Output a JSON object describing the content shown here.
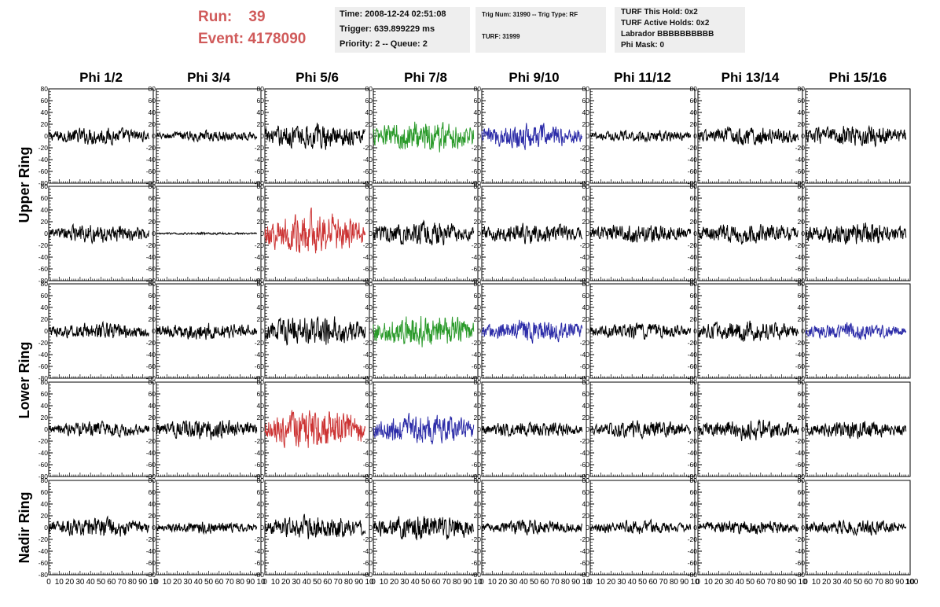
{
  "header": {
    "run_label": "Run:",
    "run_value": "39",
    "event_label": "Event:",
    "event_value": "4178090",
    "time_line": "Time: 2008-12-24 02:51:08",
    "trigger_line": "Trigger: 639.899229 ms",
    "priority_line": "Priority: 2 -- Queue: 2",
    "trig_num_line": "Trig Num: 31990 -- Trig Type: RF",
    "turf_line": "TURF: 31999",
    "turf_this_hold": "TURF This Hold: 0x2",
    "turf_active_holds": "TURF Active Holds: 0x2",
    "labrador": "Labrador BBBBBBBBBB",
    "phi_mask": "Phi Mask: 0"
  },
  "chart_data": {
    "type": "line",
    "columns": [
      "Phi 1/2",
      "Phi 3/4",
      "Phi 5/6",
      "Phi 7/8",
      "Phi 9/10",
      "Phi 11/12",
      "Phi 13/14",
      "Phi 15/16"
    ],
    "ring_labels": [
      {
        "text": "Upper Ring",
        "rows": [
          0,
          1
        ]
      },
      {
        "text": "Lower Ring",
        "rows": [
          2,
          3
        ]
      },
      {
        "text": "Nadir Ring",
        "rows": [
          4
        ]
      }
    ],
    "xlim": [
      0,
      100
    ],
    "ylim": [
      -80,
      80
    ],
    "ytick_labels": [
      "80",
      "60",
      "40",
      "20",
      "0",
      "-20",
      "-40",
      "-60",
      "-80"
    ],
    "xtick_labels_per_panel": [
      "0",
      "10",
      "20",
      "30",
      "40",
      "50",
      "60",
      "70",
      "80",
      "90",
      "10"
    ],
    "xtick_last_label": "100",
    "colors": {
      "normal": "#000000",
      "green": "#2a9a2a",
      "blue": "#2c2ca8",
      "red": "#cc3333"
    },
    "panels": [
      {
        "row": 0,
        "col": 0,
        "color": "normal",
        "amplitude": 14
      },
      {
        "row": 0,
        "col": 1,
        "color": "normal",
        "amplitude": 9
      },
      {
        "row": 0,
        "col": 2,
        "color": "normal",
        "amplitude": 22
      },
      {
        "row": 0,
        "col": 3,
        "color": "green",
        "amplitude": 28
      },
      {
        "row": 0,
        "col": 4,
        "color": "blue",
        "amplitude": 22
      },
      {
        "row": 0,
        "col": 5,
        "color": "normal",
        "amplitude": 10
      },
      {
        "row": 0,
        "col": 6,
        "color": "normal",
        "amplitude": 16
      },
      {
        "row": 0,
        "col": 7,
        "color": "normal",
        "amplitude": 18
      },
      {
        "row": 1,
        "col": 0,
        "color": "normal",
        "amplitude": 15
      },
      {
        "row": 1,
        "col": 1,
        "color": "normal",
        "amplitude": 2
      },
      {
        "row": 1,
        "col": 2,
        "color": "red",
        "amplitude": 36
      },
      {
        "row": 1,
        "col": 3,
        "color": "normal",
        "amplitude": 20
      },
      {
        "row": 1,
        "col": 4,
        "color": "normal",
        "amplitude": 16
      },
      {
        "row": 1,
        "col": 5,
        "color": "normal",
        "amplitude": 16
      },
      {
        "row": 1,
        "col": 6,
        "color": "normal",
        "amplitude": 17
      },
      {
        "row": 1,
        "col": 7,
        "color": "normal",
        "amplitude": 19
      },
      {
        "row": 2,
        "col": 0,
        "color": "normal",
        "amplitude": 14
      },
      {
        "row": 2,
        "col": 1,
        "color": "normal",
        "amplitude": 14
      },
      {
        "row": 2,
        "col": 2,
        "color": "normal",
        "amplitude": 25
      },
      {
        "row": 2,
        "col": 3,
        "color": "green",
        "amplitude": 28
      },
      {
        "row": 2,
        "col": 4,
        "color": "blue",
        "amplitude": 18
      },
      {
        "row": 2,
        "col": 5,
        "color": "normal",
        "amplitude": 13
      },
      {
        "row": 2,
        "col": 6,
        "color": "normal",
        "amplitude": 17
      },
      {
        "row": 2,
        "col": 7,
        "color": "blue",
        "amplitude": 14
      },
      {
        "row": 3,
        "col": 0,
        "color": "normal",
        "amplitude": 13
      },
      {
        "row": 3,
        "col": 1,
        "color": "normal",
        "amplitude": 17
      },
      {
        "row": 3,
        "col": 2,
        "color": "red",
        "amplitude": 33
      },
      {
        "row": 3,
        "col": 3,
        "color": "blue",
        "amplitude": 24
      },
      {
        "row": 3,
        "col": 4,
        "color": "normal",
        "amplitude": 13
      },
      {
        "row": 3,
        "col": 5,
        "color": "normal",
        "amplitude": 14
      },
      {
        "row": 3,
        "col": 6,
        "color": "normal",
        "amplitude": 17
      },
      {
        "row": 3,
        "col": 7,
        "color": "normal",
        "amplitude": 15
      },
      {
        "row": 4,
        "col": 0,
        "color": "normal",
        "amplitude": 17
      },
      {
        "row": 4,
        "col": 1,
        "color": "normal",
        "amplitude": 10
      },
      {
        "row": 4,
        "col": 2,
        "color": "normal",
        "amplitude": 20
      },
      {
        "row": 4,
        "col": 3,
        "color": "normal",
        "amplitude": 22
      },
      {
        "row": 4,
        "col": 4,
        "color": "normal",
        "amplitude": 12
      },
      {
        "row": 4,
        "col": 5,
        "color": "normal",
        "amplitude": 11
      },
      {
        "row": 4,
        "col": 6,
        "color": "normal",
        "amplitude": 12
      },
      {
        "row": 4,
        "col": 7,
        "color": "normal",
        "amplitude": 12
      }
    ]
  }
}
